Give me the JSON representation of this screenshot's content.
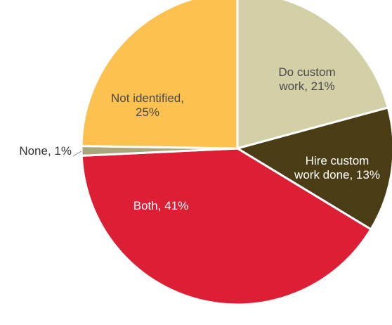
{
  "chart_data": {
    "type": "pie",
    "title": "",
    "slices": [
      {
        "label_lines": [
          "Do custom",
          "work, 21%"
        ],
        "category": "Do custom work",
        "value": 21,
        "color": "#d3d0a8",
        "text_color": "#4a4a4a"
      },
      {
        "label_lines": [
          "Hire custom",
          "work done, 13%"
        ],
        "category": "Hire custom work done",
        "value": 13,
        "color": "#4a3d16",
        "text_color": "#ffffff"
      },
      {
        "label_lines": [
          "Both, 41%"
        ],
        "category": "Both",
        "value": 41,
        "color": "#dc1f35",
        "text_color": "#ffffff"
      },
      {
        "label_lines": [
          "None, 1%"
        ],
        "category": "None",
        "value": 1,
        "color": "#a9a67c",
        "text_color": "#333333"
      },
      {
        "label_lines": [
          "Not identified,",
          "25%"
        ],
        "category": "Not identified",
        "value": 25,
        "color": "#fcc14f",
        "text_color": "#4a4a4a"
      }
    ]
  }
}
